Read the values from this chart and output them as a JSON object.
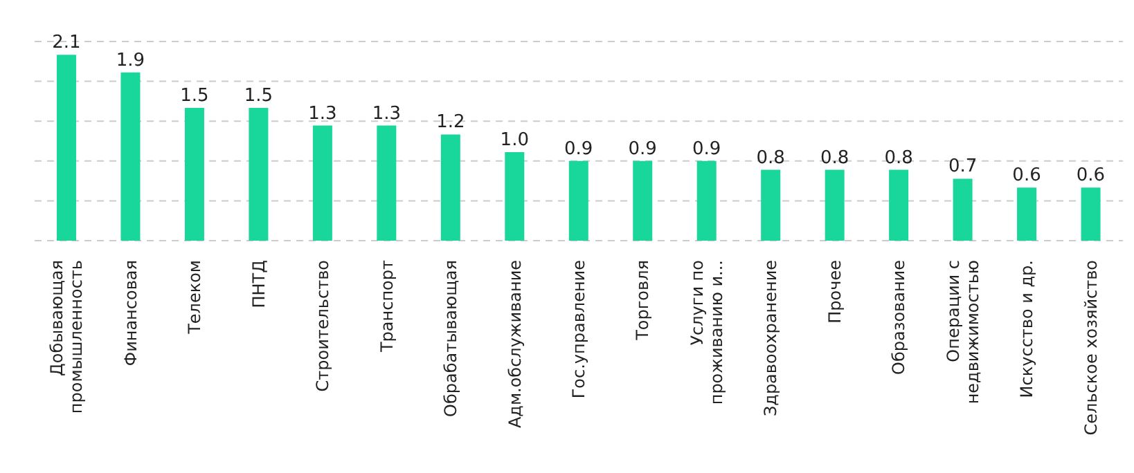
{
  "chart_data": {
    "type": "bar",
    "categories": [
      "Добывающая промышленность",
      "Финансовая",
      "Телеком",
      "ПНТД",
      "Строительство",
      "Транспорт",
      "Обрабатывающая",
      "Адм.обслуживание",
      "Гос.управление",
      "Торговля",
      "Услуги по проживанию и...",
      "Здравоохранение",
      "Прочее",
      "Образование",
      "Операции с недвижимостью",
      "Искусство и др.",
      "Сельское хозяйство"
    ],
    "values": [
      2.1,
      1.9,
      1.5,
      1.5,
      1.3,
      1.3,
      1.2,
      1.0,
      0.9,
      0.9,
      0.9,
      0.8,
      0.8,
      0.8,
      0.7,
      0.6,
      0.6
    ],
    "color": "#19d79b",
    "value_labels": [
      "2.1",
      "1.9",
      "1.5",
      "1.5",
      "1.3",
      "1.3",
      "1.2",
      "1.0",
      "0.9",
      "0.9",
      "0.9",
      "0.8",
      "0.8",
      "0.8",
      "0.7",
      "0.6",
      "0.6"
    ],
    "tick_labels": "x",
    "grid": "y"
  }
}
